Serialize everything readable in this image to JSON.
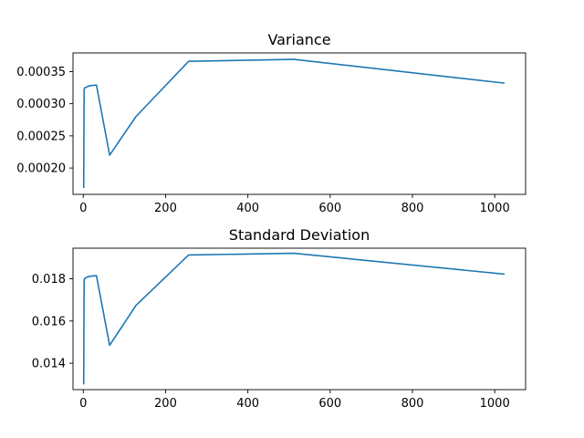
{
  "chart_data": [
    {
      "type": "line",
      "title": "Variance",
      "xlabel": "",
      "ylabel": "",
      "xlim": [
        -25,
        1075
      ],
      "ylim": [
        0.000159,
        0.000379
      ],
      "xticks": [
        0,
        200,
        400,
        600,
        800,
        1000
      ],
      "xtick_labels": [
        "0",
        "200",
        "400",
        "600",
        "800",
        "1000"
      ],
      "yticks": [
        0.0002,
        0.00025,
        0.0003,
        0.00035
      ],
      "ytick_labels": [
        "0.00020",
        "0.00025",
        "0.00030",
        "0.00035"
      ],
      "grid": false,
      "series": [
        {
          "color": "#1f77b4",
          "x": [
            1,
            2,
            4,
            8,
            16,
            32,
            64,
            128,
            256,
            512,
            1024
          ],
          "y": [
            0.000169,
            0.000322,
            0.000325,
            0.000326,
            0.000328,
            0.000329,
            0.00022,
            0.00028,
            0.000366,
            0.000369,
            0.000332
          ]
        }
      ]
    },
    {
      "type": "line",
      "title": "Standard Deviation",
      "xlabel": "",
      "ylabel": "",
      "xlim": [
        -25,
        1075
      ],
      "ylim": [
        0.01275,
        0.01945
      ],
      "xticks": [
        0,
        200,
        400,
        600,
        800,
        1000
      ],
      "xtick_labels": [
        "0",
        "200",
        "400",
        "600",
        "800",
        "1000"
      ],
      "yticks": [
        0.014,
        0.016,
        0.018
      ],
      "ytick_labels": [
        "0.014",
        "0.016",
        "0.018"
      ],
      "grid": false,
      "series": [
        {
          "color": "#1f77b4",
          "x": [
            1,
            2,
            4,
            8,
            16,
            32,
            64,
            128,
            256,
            512,
            1024
          ],
          "y": [
            0.013,
            0.01795,
            0.01803,
            0.01807,
            0.01812,
            0.01815,
            0.01485,
            0.01674,
            0.01913,
            0.01921,
            0.01822
          ]
        }
      ]
    }
  ]
}
